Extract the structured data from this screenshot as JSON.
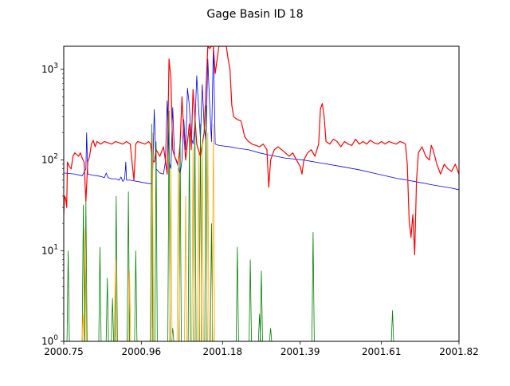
{
  "chart_data": {
    "type": "line",
    "title": "Gage Basin ID 18",
    "xlabel": "",
    "ylabel": "",
    "xlim": [
      2000.75,
      2001.82
    ],
    "ylim": [
      1,
      1800
    ],
    "yscale": "log",
    "x_ticks": [
      "2000.75",
      "2000.96",
      "2001.18",
      "2001.39",
      "2001.61",
      "2001.82"
    ],
    "y_ticks": [
      {
        "value": 1,
        "base": "10",
        "exp": "0"
      },
      {
        "value": 10,
        "base": "10",
        "exp": "1"
      },
      {
        "value": 100,
        "base": "10",
        "exp": "2"
      },
      {
        "value": 1000,
        "base": "10",
        "exp": "3"
      }
    ],
    "grid": false,
    "legend": "none",
    "series": [
      {
        "color": "#0000ff",
        "kind": "line",
        "points": [
          [
            2000.75,
            72
          ],
          [
            2000.78,
            70
          ],
          [
            2000.8,
            67
          ],
          [
            2000.81,
            80
          ],
          [
            2000.812,
            200
          ],
          [
            2000.815,
            70
          ],
          [
            2000.83,
            68
          ],
          [
            2000.85,
            66
          ],
          [
            2000.86,
            64
          ],
          [
            2000.865,
            72
          ],
          [
            2000.87,
            64
          ],
          [
            2000.88,
            62
          ],
          [
            2000.89,
            62
          ],
          [
            2000.9,
            60
          ],
          [
            2000.905,
            65
          ],
          [
            2000.91,
            58
          ],
          [
            2000.915,
            62
          ],
          [
            2000.918,
            95
          ],
          [
            2000.92,
            60
          ],
          [
            2000.93,
            60
          ],
          [
            2000.94,
            59
          ],
          [
            2000.95,
            58
          ],
          [
            2000.96,
            57
          ],
          [
            2000.97,
            56
          ],
          [
            2000.98,
            55
          ],
          [
            2000.99,
            55
          ],
          [
            2000.995,
            360
          ],
          [
            2001.0,
            80
          ],
          [
            2001.01,
            72
          ],
          [
            2001.02,
            70
          ],
          [
            2001.025,
            95
          ],
          [
            2001.03,
            450
          ],
          [
            2001.035,
            95
          ],
          [
            2001.04,
            80
          ],
          [
            2001.045,
            380
          ],
          [
            2001.05,
            110
          ],
          [
            2001.06,
            85
          ],
          [
            2001.065,
            70
          ],
          [
            2001.07,
            100
          ],
          [
            2001.075,
            280
          ],
          [
            2001.08,
            130
          ],
          [
            2001.085,
            620
          ],
          [
            2001.09,
            400
          ],
          [
            2001.095,
            180
          ],
          [
            2001.1,
            150
          ],
          [
            2001.105,
            240
          ],
          [
            2001.11,
            850
          ],
          [
            2001.115,
            380
          ],
          [
            2001.12,
            170
          ],
          [
            2001.125,
            680
          ],
          [
            2001.13,
            240
          ],
          [
            2001.135,
            160
          ],
          [
            2001.14,
            1300
          ],
          [
            2001.145,
            400
          ],
          [
            2001.15,
            160
          ],
          [
            2001.155,
            1800
          ],
          [
            2001.16,
            150
          ],
          [
            2001.17,
            145
          ],
          [
            2001.2,
            140
          ],
          [
            2001.22,
            135
          ],
          [
            2001.25,
            130
          ],
          [
            2001.28,
            120
          ],
          [
            2001.3,
            115
          ],
          [
            2001.35,
            105
          ],
          [
            2001.4,
            100
          ],
          [
            2001.45,
            92
          ],
          [
            2001.5,
            85
          ],
          [
            2001.55,
            78
          ],
          [
            2001.6,
            70
          ],
          [
            2001.65,
            63
          ],
          [
            2001.7,
            58
          ],
          [
            2001.75,
            53
          ],
          [
            2001.8,
            49
          ],
          [
            2001.82,
            47
          ]
        ]
      },
      {
        "color": "#ff0000",
        "kind": "line",
        "points": [
          [
            2000.75,
            25
          ],
          [
            2000.752,
            40
          ],
          [
            2000.755,
            38
          ],
          [
            2000.758,
            30
          ],
          [
            2000.76,
            95
          ],
          [
            2000.765,
            85
          ],
          [
            2000.77,
            80
          ],
          [
            2000.775,
            110
          ],
          [
            2000.78,
            120
          ],
          [
            2000.785,
            115
          ],
          [
            2000.79,
            110
          ],
          [
            2000.795,
            120
          ],
          [
            2000.8,
            105
          ],
          [
            2000.805,
            95
          ],
          [
            2000.81,
            35
          ],
          [
            2000.815,
            95
          ],
          [
            2000.82,
            110
          ],
          [
            2000.825,
            150
          ],
          [
            2000.83,
            165
          ],
          [
            2000.835,
            140
          ],
          [
            2000.84,
            160
          ],
          [
            2000.85,
            150
          ],
          [
            2000.86,
            160
          ],
          [
            2000.87,
            155
          ],
          [
            2000.88,
            150
          ],
          [
            2000.89,
            160
          ],
          [
            2000.9,
            155
          ],
          [
            2000.91,
            150
          ],
          [
            2000.92,
            160
          ],
          [
            2000.93,
            150
          ],
          [
            2000.94,
            60
          ],
          [
            2000.945,
            150
          ],
          [
            2000.95,
            160
          ],
          [
            2000.96,
            155
          ],
          [
            2000.97,
            150
          ],
          [
            2000.98,
            160
          ],
          [
            2000.985,
            150
          ],
          [
            2000.99,
            100
          ],
          [
            2000.995,
            95
          ],
          [
            2001.0,
            130
          ],
          [
            2001.01,
            110
          ],
          [
            2001.02,
            140
          ],
          [
            2001.025,
            100
          ],
          [
            2001.03,
            70
          ],
          [
            2001.035,
            1300
          ],
          [
            2001.04,
            800
          ],
          [
            2001.045,
            130
          ],
          [
            2001.05,
            110
          ],
          [
            2001.06,
            90
          ],
          [
            2001.065,
            150
          ],
          [
            2001.07,
            500
          ],
          [
            2001.075,
            200
          ],
          [
            2001.08,
            100
          ],
          [
            2001.09,
            250
          ],
          [
            2001.095,
            130
          ],
          [
            2001.1,
            600
          ],
          [
            2001.11,
            150
          ],
          [
            2001.12,
            110
          ],
          [
            2001.13,
            200
          ],
          [
            2001.14,
            1800
          ],
          [
            2001.145,
            1700
          ],
          [
            2001.15,
            1800
          ],
          [
            2001.155,
            1800
          ],
          [
            2001.16,
            900
          ],
          [
            2001.17,
            1800
          ],
          [
            2001.18,
            1800
          ],
          [
            2001.19,
            1800
          ],
          [
            2001.195,
            1300
          ],
          [
            2001.2,
            1000
          ],
          [
            2001.205,
            400
          ],
          [
            2001.21,
            300
          ],
          [
            2001.22,
            280
          ],
          [
            2001.23,
            270
          ],
          [
            2001.24,
            180
          ],
          [
            2001.25,
            160
          ],
          [
            2001.26,
            150
          ],
          [
            2001.27,
            145
          ],
          [
            2001.28,
            140
          ],
          [
            2001.29,
            150
          ],
          [
            2001.3,
            130
          ],
          [
            2001.305,
            50
          ],
          [
            2001.31,
            100
          ],
          [
            2001.32,
            130
          ],
          [
            2001.33,
            140
          ],
          [
            2001.34,
            130
          ],
          [
            2001.35,
            120
          ],
          [
            2001.36,
            110
          ],
          [
            2001.37,
            120
          ],
          [
            2001.38,
            100
          ],
          [
            2001.39,
            85
          ],
          [
            2001.395,
            70
          ],
          [
            2001.4,
            100
          ],
          [
            2001.41,
            120
          ],
          [
            2001.42,
            130
          ],
          [
            2001.43,
            110
          ],
          [
            2001.44,
            150
          ],
          [
            2001.445,
            370
          ],
          [
            2001.45,
            420
          ],
          [
            2001.455,
            300
          ],
          [
            2001.46,
            160
          ],
          [
            2001.47,
            150
          ],
          [
            2001.48,
            170
          ],
          [
            2001.49,
            160
          ],
          [
            2001.5,
            140
          ],
          [
            2001.51,
            160
          ],
          [
            2001.52,
            150
          ],
          [
            2001.53,
            145
          ],
          [
            2001.54,
            170
          ],
          [
            2001.55,
            150
          ],
          [
            2001.56,
            160
          ],
          [
            2001.57,
            150
          ],
          [
            2001.58,
            165
          ],
          [
            2001.59,
            155
          ],
          [
            2001.6,
            150
          ],
          [
            2001.61,
            160
          ],
          [
            2001.62,
            150
          ],
          [
            2001.63,
            160
          ],
          [
            2001.64,
            155
          ],
          [
            2001.65,
            150
          ],
          [
            2001.66,
            160
          ],
          [
            2001.67,
            155
          ],
          [
            2001.675,
            150
          ],
          [
            2001.68,
            90
          ],
          [
            2001.685,
            22
          ],
          [
            2001.69,
            14
          ],
          [
            2001.695,
            25
          ],
          [
            2001.7,
            9
          ],
          [
            2001.705,
            60
          ],
          [
            2001.71,
            120
          ],
          [
            2001.72,
            140
          ],
          [
            2001.73,
            110
          ],
          [
            2001.74,
            100
          ],
          [
            2001.745,
            145
          ],
          [
            2001.75,
            130
          ],
          [
            2001.76,
            90
          ],
          [
            2001.77,
            70
          ],
          [
            2001.78,
            90
          ],
          [
            2001.79,
            80
          ],
          [
            2001.8,
            75
          ],
          [
            2001.81,
            90
          ],
          [
            2001.82,
            70
          ]
        ]
      },
      {
        "color": "#008000",
        "kind": "spikes",
        "points": [
          [
            2000.762,
            10
          ],
          [
            2000.803,
            32
          ],
          [
            2000.81,
            35
          ],
          [
            2000.848,
            11
          ],
          [
            2000.868,
            5
          ],
          [
            2000.882,
            3
          ],
          [
            2000.892,
            40
          ],
          [
            2000.925,
            45
          ],
          [
            2000.945,
            10
          ],
          [
            2000.988,
            250
          ],
          [
            2001.0,
            160
          ],
          [
            2001.035,
            350
          ],
          [
            2001.045,
            1.4
          ],
          [
            2001.065,
            170
          ],
          [
            2001.09,
            200
          ],
          [
            2001.105,
            280
          ],
          [
            2001.12,
            250
          ],
          [
            2001.135,
            400
          ],
          [
            2001.15,
            20
          ],
          [
            2001.22,
            11
          ],
          [
            2001.255,
            8
          ],
          [
            2001.28,
            2
          ],
          [
            2001.285,
            6
          ],
          [
            2001.31,
            1.4
          ],
          [
            2001.425,
            16
          ],
          [
            2001.64,
            2.2
          ]
        ]
      },
      {
        "color": "#ffa500",
        "kind": "spikes",
        "points": [
          [
            2000.802,
            2
          ],
          [
            2000.808,
            18
          ],
          [
            2000.89,
            8
          ],
          [
            2000.928,
            6
          ],
          [
            2000.99,
            200
          ],
          [
            2001.04,
            80
          ],
          [
            2001.06,
            110
          ],
          [
            2001.08,
            40
          ],
          [
            2001.1,
            140
          ],
          [
            2001.115,
            120
          ],
          [
            2001.125,
            160
          ],
          [
            2001.14,
            200
          ],
          [
            2001.155,
            250
          ]
        ]
      }
    ]
  }
}
